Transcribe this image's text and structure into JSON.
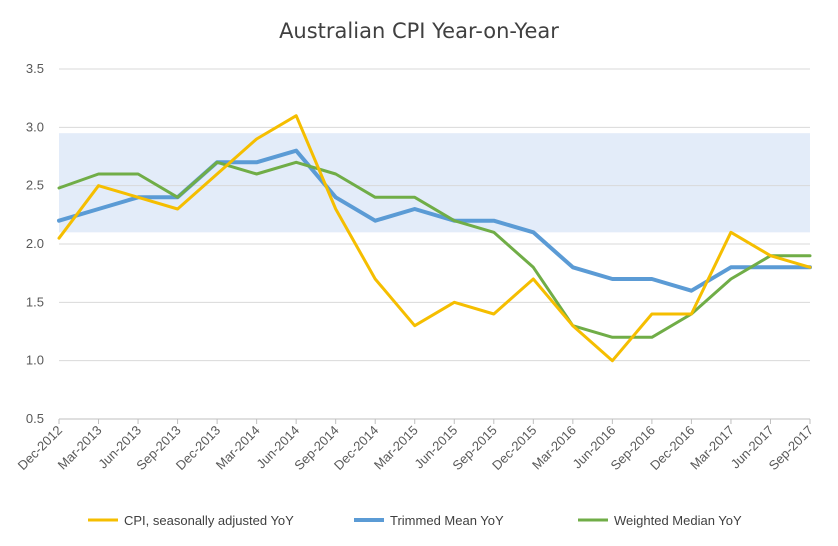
{
  "chart_data": {
    "type": "line",
    "title": "Australian CPI  Year-on-Year",
    "xlabel": "",
    "ylabel": "",
    "categories": [
      "Dec-2012",
      "Mar-2013",
      "Jun-2013",
      "Sep-2013",
      "Dec-2013",
      "Mar-2014",
      "Jun-2014",
      "Sep-2014",
      "Dec-2014",
      "Mar-2015",
      "Jun-2015",
      "Sep-2015",
      "Dec-2015",
      "Mar-2016",
      "Jun-2016",
      "Sep-2016",
      "Dec-2016",
      "Mar-2017",
      "Jun-2017",
      "Sep-2017"
    ],
    "ylim": [
      0.5,
      3.5
    ],
    "yticks": [
      "3.5",
      "3.0",
      "2.5",
      "2.0",
      "1.5",
      "1.0",
      "0.5"
    ],
    "target_band": [
      2.1,
      2.95
    ],
    "grid": true,
    "legend_position": "bottom",
    "series": [
      {
        "name": "CPI, seasonally adjusted YoY",
        "color": "#F5BE00",
        "values": [
          2.05,
          2.5,
          2.4,
          2.3,
          2.6,
          2.9,
          3.1,
          2.3,
          1.7,
          1.3,
          1.5,
          1.4,
          1.7,
          1.3,
          1.0,
          1.4,
          1.4,
          2.1,
          1.9,
          1.8
        ]
      },
      {
        "name": "Trimmed Mean YoY",
        "color": "#5B9BD5",
        "values": [
          2.2,
          2.3,
          2.4,
          2.4,
          2.7,
          2.7,
          2.8,
          2.4,
          2.2,
          2.3,
          2.2,
          2.2,
          2.1,
          1.8,
          1.7,
          1.7,
          1.6,
          1.8,
          1.8,
          1.8
        ]
      },
      {
        "name": "Weighted Median YoY",
        "color": "#70AD47",
        "values": [
          2.48,
          2.6,
          2.6,
          2.4,
          2.7,
          2.6,
          2.7,
          2.6,
          2.4,
          2.4,
          2.2,
          2.1,
          1.8,
          1.3,
          1.2,
          1.2,
          1.4,
          1.7,
          1.9,
          1.9
        ]
      }
    ]
  }
}
